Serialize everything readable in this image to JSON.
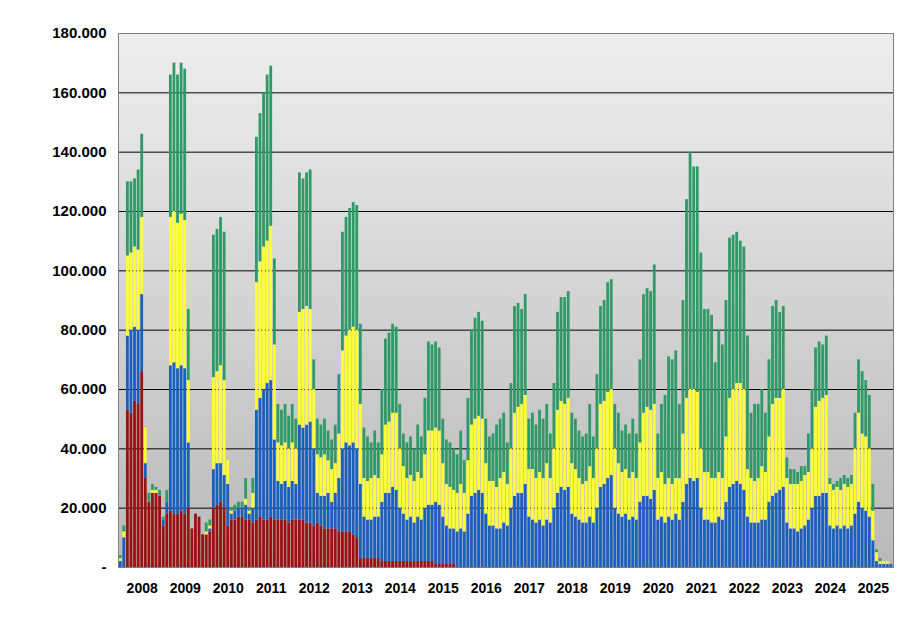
{
  "chart_data": {
    "type": "bar",
    "stacked": true,
    "grid": true,
    "categories": [
      null,
      null,
      null,
      null,
      null,
      null,
      "2008",
      null,
      null,
      null,
      null,
      null,
      null,
      null,
      null,
      null,
      null,
      null,
      "2009",
      null,
      null,
      null,
      null,
      null,
      null,
      null,
      null,
      null,
      null,
      null,
      "2010",
      null,
      null,
      null,
      null,
      null,
      null,
      null,
      null,
      null,
      null,
      null,
      "2011",
      null,
      null,
      null,
      null,
      null,
      null,
      null,
      null,
      null,
      null,
      null,
      "2012",
      null,
      null,
      null,
      null,
      null,
      null,
      null,
      null,
      null,
      null,
      null,
      "2013",
      null,
      null,
      null,
      null,
      null,
      null,
      null,
      null,
      null,
      null,
      null,
      "2014",
      null,
      null,
      null,
      null,
      null,
      null,
      null,
      null,
      null,
      null,
      null,
      "2015",
      null,
      null,
      null,
      null,
      null,
      null,
      null,
      null,
      null,
      null,
      null,
      "2016",
      null,
      null,
      null,
      null,
      null,
      null,
      null,
      null,
      null,
      null,
      null,
      "2017",
      null,
      null,
      null,
      null,
      null,
      null,
      null,
      null,
      null,
      null,
      null,
      "2018",
      null,
      null,
      null,
      null,
      null,
      null,
      null,
      null,
      null,
      null,
      null,
      "2019",
      null,
      null,
      null,
      null,
      null,
      null,
      null,
      null,
      null,
      null,
      null,
      "2020",
      null,
      null,
      null,
      null,
      null,
      null,
      null,
      null,
      null,
      null,
      null,
      "2021",
      null,
      null,
      null,
      null,
      null,
      null,
      null,
      null,
      null,
      null,
      null,
      "2022",
      null,
      null,
      null,
      null,
      null,
      null,
      null,
      null,
      null,
      null,
      null,
      "2023",
      null,
      null,
      null,
      null,
      null,
      null,
      null,
      null,
      null,
      null,
      null,
      "2024",
      null,
      null,
      null,
      null,
      null,
      null,
      null,
      null,
      null,
      null,
      null,
      "2025",
      null,
      null,
      null,
      null,
      null
    ],
    "series": [
      {
        "color": "#9b1111",
        "values": [
          0,
          0,
          53000,
          52000,
          56000,
          55000,
          66000,
          30000,
          22000,
          25000,
          25000,
          24000,
          14000,
          18000,
          19000,
          18000,
          18000,
          19000,
          18000,
          20000,
          13000,
          18000,
          17000,
          11000,
          11000,
          12000,
          20000,
          21000,
          22000,
          20000,
          14000,
          16000,
          16000,
          17000,
          17000,
          16000,
          16000,
          15000,
          16000,
          17000,
          16000,
          16000,
          17000,
          16000,
          16000,
          16000,
          16000,
          15000,
          16000,
          16000,
          16000,
          16000,
          15000,
          15000,
          14000,
          15000,
          14000,
          13000,
          13000,
          13000,
          13000,
          12000,
          12000,
          12000,
          12000,
          11000,
          10000,
          3000,
          3000,
          3000,
          3000,
          3000,
          3000,
          2000,
          2000,
          2000,
          2000,
          2000,
          2000,
          2000,
          2000,
          2000,
          2000,
          2000,
          2000,
          2000,
          2000,
          2000,
          1000,
          1000,
          1000,
          1000,
          1000,
          1000,
          0,
          0,
          0,
          0,
          0,
          0,
          0,
          0,
          0,
          0,
          0,
          0,
          0,
          0,
          0,
          0,
          0,
          0,
          0,
          0,
          0,
          0,
          0,
          0,
          0,
          0,
          0,
          0,
          0,
          0,
          0,
          0,
          0,
          0,
          0,
          0,
          0,
          0,
          0,
          0,
          0,
          0,
          0,
          0,
          0,
          0,
          0,
          0,
          0,
          0,
          0,
          0,
          0,
          0,
          0,
          0,
          0,
          0,
          0,
          0,
          0,
          0,
          0,
          0,
          0,
          0,
          0,
          0,
          0,
          0,
          0,
          0,
          0,
          0,
          0,
          0,
          0,
          0,
          0,
          0,
          0,
          0,
          0,
          0,
          0,
          0,
          0,
          0,
          0,
          0,
          0,
          0,
          0,
          0,
          0,
          0,
          0,
          0,
          0,
          0,
          0,
          0,
          0,
          0,
          0,
          0,
          0,
          0,
          0,
          0,
          0,
          0,
          0,
          0,
          0,
          0,
          0,
          0,
          0,
          0,
          0,
          0
        ]
      },
      {
        "color": "#1a5fc0",
        "values": [
          2000,
          10000,
          25000,
          28000,
          25000,
          25000,
          26000,
          5000,
          0,
          0,
          0,
          0,
          2000,
          4000,
          49000,
          51000,
          49000,
          49000,
          49000,
          22000,
          0,
          0,
          0,
          0,
          0,
          1000,
          13000,
          14000,
          13000,
          11000,
          14000,
          2000,
          3000,
          3000,
          3000,
          5000,
          2000,
          5000,
          37000,
          40000,
          44000,
          46000,
          46000,
          27000,
          13000,
          12000,
          13000,
          12000,
          13000,
          12000,
          32000,
          31000,
          33000,
          34000,
          26000,
          10000,
          10000,
          11000,
          12000,
          9000,
          12000,
          18000,
          28000,
          30000,
          29000,
          31000,
          30000,
          25000,
          14000,
          13000,
          13000,
          14000,
          14000,
          20000,
          23000,
          23000,
          25000,
          24000,
          18000,
          16000,
          14000,
          15000,
          13000,
          15000,
          14000,
          18000,
          19000,
          19000,
          21000,
          20000,
          16000,
          13000,
          12000,
          12000,
          12000,
          13000,
          12000,
          18000,
          24000,
          25000,
          26000,
          25000,
          18000,
          14000,
          14000,
          13000,
          13000,
          15000,
          14000,
          20000,
          24000,
          25000,
          25000,
          28000,
          17000,
          16000,
          15000,
          16000,
          14000,
          16000,
          15000,
          20000,
          25000,
          27000,
          26000,
          27000,
          18000,
          17000,
          16000,
          15000,
          15000,
          17000,
          15000,
          20000,
          27000,
          28000,
          30000,
          31000,
          20000,
          18000,
          17000,
          18000,
          16000,
          17000,
          16000,
          22000,
          24000,
          24000,
          23000,
          26000,
          16000,
          17000,
          15000,
          17000,
          16000,
          18000,
          16000,
          22000,
          28000,
          30000,
          29000,
          30000,
          20000,
          16000,
          16000,
          15000,
          15000,
          17000,
          16000,
          22000,
          27000,
          28000,
          29000,
          28000,
          26000,
          17000,
          15000,
          15000,
          15000,
          16000,
          16000,
          22000,
          24000,
          25000,
          26000,
          27000,
          15000,
          13000,
          13000,
          12000,
          13000,
          14000,
          16000,
          20000,
          24000,
          24000,
          25000,
          25000,
          14000,
          13000,
          14000,
          13000,
          14000,
          13000,
          14000,
          18000,
          22000,
          20000,
          19000,
          17000,
          9000,
          2000,
          1000,
          1000,
          1000,
          1000
        ]
      },
      {
        "color": "#ffff33",
        "values": [
          1000,
          2000,
          27000,
          26000,
          27000,
          27000,
          26000,
          12000,
          0,
          1000,
          1000,
          0,
          0,
          0,
          50000,
          51000,
          49000,
          51000,
          50000,
          21000,
          0,
          0,
          0,
          0,
          1000,
          1000,
          31000,
          31000,
          33000,
          32000,
          8000,
          1000,
          0,
          0,
          0,
          2000,
          1000,
          5000,
          43000,
          46000,
          48000,
          48000,
          52000,
          32000,
          13000,
          13000,
          13000,
          13000,
          13000,
          12000,
          38000,
          40000,
          40000,
          38000,
          20000,
          13000,
          13000,
          14000,
          11000,
          11000,
          10000,
          15000,
          33000,
          36000,
          39000,
          39000,
          40000,
          27000,
          13000,
          13000,
          14000,
          14000,
          13000,
          16000,
          23000,
          24000,
          25000,
          26000,
          20000,
          16000,
          14000,
          14000,
          14000,
          15000,
          14000,
          18000,
          25000,
          25000,
          25000,
          25000,
          18000,
          14000,
          14000,
          13000,
          13000,
          15000,
          13000,
          18000,
          24000,
          25000,
          25000,
          25000,
          17000,
          15000,
          15000,
          14000,
          17000,
          17000,
          14000,
          20000,
          28000,
          29000,
          30000,
          30000,
          16000,
          17000,
          15000,
          16000,
          16000,
          19000,
          15000,
          20000,
          28000,
          29000,
          29000,
          30000,
          17000,
          16000,
          14000,
          13000,
          14000,
          17000,
          15000,
          20000,
          28000,
          28000,
          29000,
          29000,
          20000,
          17000,
          15000,
          15000,
          14000,
          15000,
          14000,
          20000,
          28000,
          30000,
          30000,
          29000,
          14000,
          15000,
          13000,
          13000,
          12000,
          12000,
          14000,
          23000,
          29000,
          30000,
          31000,
          29000,
          20000,
          16000,
          16000,
          15000,
          15000,
          15000,
          14000,
          22000,
          30000,
          32000,
          33000,
          34000,
          34000,
          16000,
          15000,
          14000,
          15000,
          18000,
          16000,
          22000,
          31000,
          32000,
          31000,
          33000,
          15000,
          15000,
          15000,
          16000,
          16000,
          17000,
          16000,
          20000,
          30000,
          32000,
          32000,
          33000,
          14000,
          13000,
          13000,
          13000,
          14000,
          14000,
          14000,
          22000,
          30000,
          25000,
          25000,
          23000,
          10000,
          3000,
          1000,
          1000,
          1000,
          0
        ]
      },
      {
        "color": "#2f9a66",
        "values": [
          1000,
          2000,
          25000,
          24000,
          23000,
          27000,
          28000,
          0,
          3000,
          2000,
          1000,
          2000,
          1000,
          4000,
          48000,
          50000,
          50000,
          51000,
          51000,
          24000,
          0,
          0,
          0,
          0,
          3000,
          2000,
          48000,
          48000,
          50000,
          50000,
          0,
          1000,
          2000,
          2000,
          2000,
          7000,
          1000,
          5000,
          49000,
          50000,
          52000,
          56000,
          54000,
          29000,
          13000,
          12000,
          13000,
          11000,
          13000,
          10000,
          47000,
          44000,
          45000,
          47000,
          10000,
          12000,
          11000,
          12000,
          10000,
          10000,
          13000,
          20000,
          40000,
          40000,
          41000,
          42000,
          42000,
          27000,
          17000,
          15000,
          12000,
          15000,
          12000,
          22000,
          29000,
          30000,
          30000,
          29000,
          15000,
          11000,
          12000,
          13000,
          11000,
          16000,
          14000,
          19000,
          30000,
          29000,
          29000,
          28000,
          15000,
          15000,
          15000,
          14000,
          13000,
          18000,
          11000,
          21000,
          32000,
          34000,
          35000,
          33000,
          15000,
          15000,
          16000,
          21000,
          20000,
          20000,
          14000,
          22000,
          36000,
          35000,
          32000,
          34000,
          17000,
          19000,
          18000,
          21000,
          20000,
          20000,
          15000,
          22000,
          33000,
          35000,
          36000,
          36000,
          17000,
          17000,
          16000,
          16000,
          16000,
          21000,
          14000,
          25000,
          33000,
          34000,
          37000,
          37000,
          15000,
          17000,
          14000,
          15000,
          15000,
          18000,
          15000,
          28000,
          40000,
          40000,
          40000,
          47000,
          15000,
          23000,
          30000,
          41000,
          42000,
          43000,
          25000,
          45000,
          67000,
          80000,
          75000,
          76000,
          66000,
          55000,
          55000,
          55000,
          39000,
          48000,
          45000,
          46000,
          54000,
          52000,
          51000,
          48000,
          48000,
          45000,
          22000,
          26000,
          25000,
          26000,
          20000,
          26000,
          33000,
          33000,
          29000,
          28000,
          7000,
          5000,
          5000,
          4000,
          5000,
          3000,
          13000,
          20000,
          20000,
          20000,
          18000,
          20000,
          2000,
          2000,
          2000,
          4000,
          3000,
          3000,
          3000,
          12000,
          18000,
          21000,
          19000,
          18000,
          9000,
          1000,
          1000,
          0,
          0,
          0
        ]
      }
    ],
    "ylim": [
      0,
      180000
    ],
    "yticks": [
      {
        "value": 0,
        "label": "-"
      },
      {
        "value": 20000,
        "label": "20.000"
      },
      {
        "value": 40000,
        "label": "40.000"
      },
      {
        "value": 60000,
        "label": "60.000"
      },
      {
        "value": 80000,
        "label": "80.000"
      },
      {
        "value": 100000,
        "label": "100.000"
      },
      {
        "value": 120000,
        "label": "120.000"
      },
      {
        "value": 140000,
        "label": "140.000"
      },
      {
        "value": 160000,
        "label": "160.000"
      },
      {
        "value": 180000,
        "label": "180.000"
      }
    ]
  }
}
